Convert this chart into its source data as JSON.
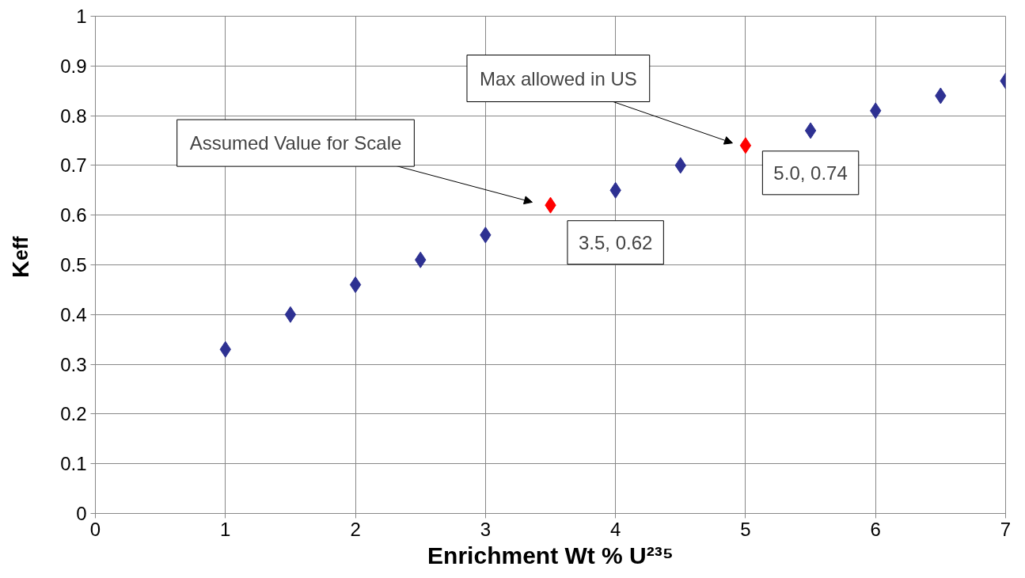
{
  "chart_data": {
    "type": "scatter",
    "xlabel": "Enrichment Wt % U²³⁵",
    "ylabel": "K$_{eff}$",
    "xlim": [
      0,
      7
    ],
    "ylim": [
      0,
      1
    ],
    "xticks": [
      0,
      1,
      2,
      3,
      4,
      5,
      6,
      7
    ],
    "yticks": [
      0,
      0.1,
      0.2,
      0.3,
      0.4,
      0.5,
      0.6,
      0.7,
      0.8,
      0.9,
      1
    ],
    "grid": true,
    "marker": "diamond",
    "series": [
      {
        "color": "#2e3192",
        "x": [
          1,
          1.5,
          2,
          2.5,
          3,
          4,
          4.5,
          5.5,
          6,
          6.5,
          7
        ],
        "values": [
          0.33,
          0.4,
          0.46,
          0.51,
          0.56,
          0.65,
          0.7,
          0.77,
          0.81,
          0.84,
          0.87
        ]
      },
      {
        "color": "#ff0000",
        "x": [
          3.5,
          5
        ],
        "values": [
          0.62,
          0.74
        ],
        "value_labels": [
          "3.5, 0.62",
          "5.0, 0.74"
        ]
      }
    ],
    "annotations": [
      "Assumed Value for Scale",
      "Max allowed in US"
    ]
  }
}
